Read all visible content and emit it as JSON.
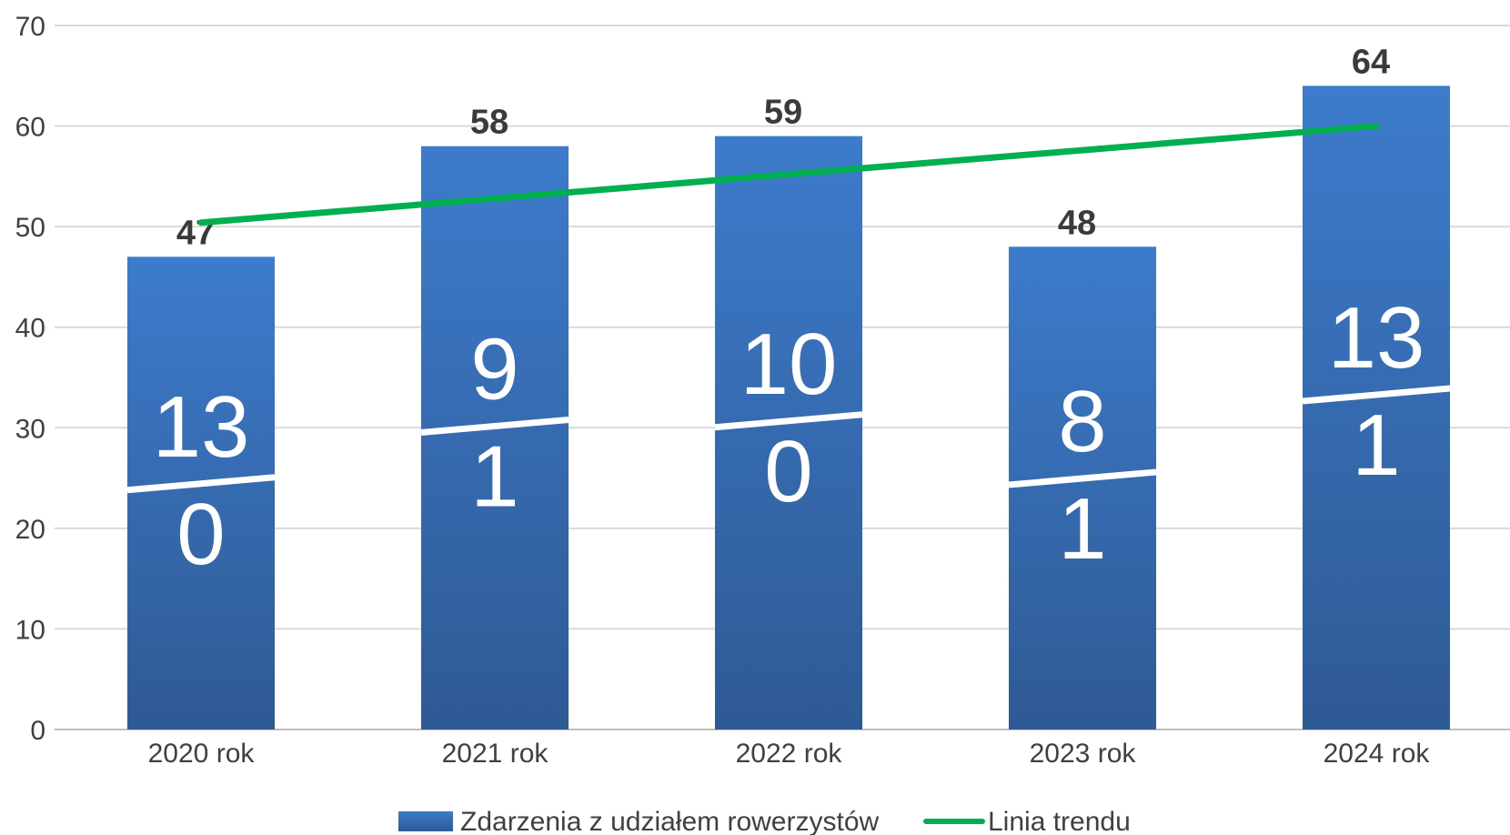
{
  "chart_data": {
    "type": "bar",
    "categories": [
      "2020 rok",
      "2021 rok",
      "2022 rok",
      "2023 rok",
      "2024 rok"
    ],
    "values": [
      47,
      58,
      59,
      48,
      64
    ],
    "inner_labels": [
      {
        "top": "13",
        "bottom": "0"
      },
      {
        "top": "9",
        "bottom": "1"
      },
      {
        "top": "10",
        "bottom": "0"
      },
      {
        "top": "8",
        "bottom": "1"
      },
      {
        "top": "13",
        "bottom": "1"
      }
    ],
    "trend": {
      "name": "Linia trendu",
      "start": 50.4,
      "end": 60.0
    },
    "series_name": "Zdarzenia z udziałem rowerzystów",
    "yticks": [
      "0",
      "10",
      "20",
      "30",
      "40",
      "50",
      "60",
      "70"
    ],
    "ylim": [
      0,
      70
    ],
    "grid": true,
    "legend_position": "bottom",
    "colors": {
      "bar_top": "#3d7bcc",
      "bar_bottom": "#2e5a94",
      "trend": "#00b050",
      "grid": "#d9d9d9",
      "text": "#404040"
    }
  }
}
